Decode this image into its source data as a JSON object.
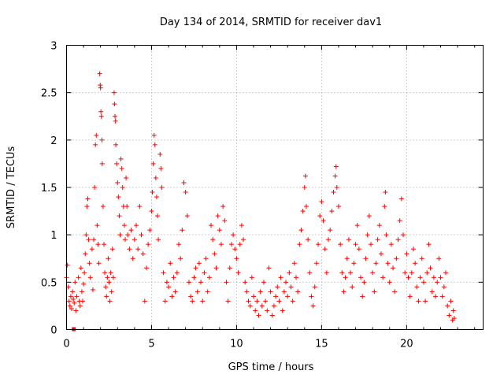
{
  "chart_data": {
    "type": "scatter",
    "title": "Day 134 of 2014, SRMTID for receiver dav1",
    "xlabel": "GPS time / hours",
    "ylabel": "SRMTID / TECUs",
    "xlim": [
      0,
      24.5
    ],
    "ylim": [
      0,
      3
    ],
    "x_ticks": [
      0,
      5,
      10,
      15,
      20
    ],
    "x_tick_labels": [
      "0",
      "5",
      "10",
      "15",
      "20"
    ],
    "y_ticks": [
      0,
      0.5,
      1,
      1.5,
      2,
      2.5,
      3
    ],
    "y_tick_labels": [
      "0",
      "0.5",
      "1",
      "1.5",
      "2",
      "2.5",
      "3"
    ],
    "grid": true,
    "marker": "plus",
    "color": "#ff0000",
    "series": [
      {
        "name": "dav1",
        "data_description": "Dense scatter of several thousand samples; the listed points are approximate readings of representative values from the figure.",
        "points": [
          [
            0.0,
            0.55
          ],
          [
            0.05,
            0.68
          ],
          [
            0.1,
            0.45
          ],
          [
            0.15,
            0.3
          ],
          [
            0.2,
            0.25
          ],
          [
            0.25,
            0.35
          ],
          [
            0.3,
            0.22
          ],
          [
            0.35,
            0.4
          ],
          [
            0.4,
            0.32
          ],
          [
            0.45,
            0.28
          ],
          [
            0.5,
            0.5
          ],
          [
            0.55,
            0.2
          ],
          [
            0.6,
            0.35
          ],
          [
            0.7,
            0.55
          ],
          [
            0.75,
            0.3
          ],
          [
            0.8,
            0.25
          ],
          [
            0.85,
            0.65
          ],
          [
            0.9,
            0.4
          ],
          [
            0.95,
            0.3
          ],
          [
            1.0,
            0.48
          ],
          [
            1.05,
            0.6
          ],
          [
            1.1,
            0.8
          ],
          [
            1.15,
            1.0
          ],
          [
            1.2,
            1.3
          ],
          [
            1.25,
            1.38
          ],
          [
            1.3,
            0.95
          ],
          [
            1.35,
            0.7
          ],
          [
            1.4,
            0.55
          ],
          [
            1.5,
            0.85
          ],
          [
            1.55,
            0.42
          ],
          [
            1.6,
            0.95
          ],
          [
            1.65,
            1.5
          ],
          [
            1.7,
            1.95
          ],
          [
            1.75,
            2.05
          ],
          [
            1.8,
            1.1
          ],
          [
            1.85,
            0.9
          ],
          [
            1.9,
            0.7
          ],
          [
            1.95,
            2.7
          ],
          [
            1.98,
            2.58
          ],
          [
            2.0,
            2.55
          ],
          [
            2.02,
            2.3
          ],
          [
            2.05,
            2.25
          ],
          [
            2.08,
            2.0
          ],
          [
            2.1,
            1.75
          ],
          [
            2.15,
            1.3
          ],
          [
            2.2,
            0.9
          ],
          [
            2.25,
            0.6
          ],
          [
            2.3,
            0.45
          ],
          [
            2.35,
            0.35
          ],
          [
            2.4,
            0.55
          ],
          [
            2.45,
            0.75
          ],
          [
            2.5,
            0.5
          ],
          [
            2.55,
            0.3
          ],
          [
            2.6,
            0.6
          ],
          [
            2.65,
            0.4
          ],
          [
            2.7,
            0.85
          ],
          [
            2.75,
            0.55
          ],
          [
            2.8,
            2.5
          ],
          [
            2.82,
            2.38
          ],
          [
            2.85,
            2.25
          ],
          [
            2.88,
            2.2
          ],
          [
            2.9,
            1.95
          ],
          [
            2.95,
            1.75
          ],
          [
            3.0,
            1.55
          ],
          [
            3.05,
            1.4
          ],
          [
            3.1,
            1.2
          ],
          [
            3.15,
            1.0
          ],
          [
            3.2,
            1.8
          ],
          [
            3.25,
            1.7
          ],
          [
            3.3,
            1.5
          ],
          [
            3.35,
            1.3
          ],
          [
            3.4,
            1.1
          ],
          [
            3.45,
            0.95
          ],
          [
            3.5,
            1.6
          ],
          [
            3.55,
            1.3
          ],
          [
            3.6,
            1.0
          ],
          [
            3.7,
            0.85
          ],
          [
            3.8,
            1.05
          ],
          [
            3.9,
            0.75
          ],
          [
            4.0,
            0.95
          ],
          [
            4.1,
            1.1
          ],
          [
            4.2,
            0.85
          ],
          [
            4.3,
            1.3
          ],
          [
            4.4,
            1.0
          ],
          [
            4.5,
            0.8
          ],
          [
            4.6,
            0.3
          ],
          [
            4.7,
            0.65
          ],
          [
            4.8,
            0.9
          ],
          [
            4.9,
            1.05
          ],
          [
            5.0,
            1.25
          ],
          [
            5.05,
            1.45
          ],
          [
            5.1,
            1.75
          ],
          [
            5.15,
            2.05
          ],
          [
            5.2,
            1.95
          ],
          [
            5.25,
            1.6
          ],
          [
            5.3,
            1.4
          ],
          [
            5.35,
            1.2
          ],
          [
            5.4,
            0.95
          ],
          [
            5.5,
            1.85
          ],
          [
            5.55,
            1.7
          ],
          [
            5.6,
            1.5
          ],
          [
            5.7,
            0.6
          ],
          [
            5.8,
            0.3
          ],
          [
            5.9,
            0.5
          ],
          [
            6.0,
            0.45
          ],
          [
            6.1,
            0.7
          ],
          [
            6.2,
            0.35
          ],
          [
            6.3,
            0.55
          ],
          [
            6.4,
            0.4
          ],
          [
            6.5,
            0.6
          ],
          [
            6.6,
            0.9
          ],
          [
            6.7,
            0.75
          ],
          [
            6.8,
            1.05
          ],
          [
            6.9,
            1.55
          ],
          [
            7.0,
            1.45
          ],
          [
            7.1,
            1.2
          ],
          [
            7.2,
            0.5
          ],
          [
            7.3,
            0.35
          ],
          [
            7.4,
            0.3
          ],
          [
            7.5,
            0.55
          ],
          [
            7.6,
            0.65
          ],
          [
            7.7,
            0.4
          ],
          [
            7.8,
            0.7
          ],
          [
            7.9,
            0.5
          ],
          [
            8.0,
            0.3
          ],
          [
            8.1,
            0.6
          ],
          [
            8.2,
            0.75
          ],
          [
            8.3,
            0.4
          ],
          [
            8.4,
            0.55
          ],
          [
            8.5,
            1.1
          ],
          [
            8.6,
            0.95
          ],
          [
            8.7,
            0.8
          ],
          [
            8.8,
            0.65
          ],
          [
            8.9,
            1.2
          ],
          [
            9.0,
            1.05
          ],
          [
            9.1,
            0.9
          ],
          [
            9.2,
            1.3
          ],
          [
            9.3,
            1.15
          ],
          [
            9.4,
            0.5
          ],
          [
            9.5,
            0.3
          ],
          [
            9.6,
            0.65
          ],
          [
            9.7,
            0.9
          ],
          [
            9.8,
            1.0
          ],
          [
            9.9,
            0.85
          ],
          [
            10.0,
            0.75
          ],
          [
            10.1,
            0.6
          ],
          [
            10.2,
            0.9
          ],
          [
            10.3,
            1.1
          ],
          [
            10.4,
            0.95
          ],
          [
            10.5,
            0.5
          ],
          [
            10.6,
            0.4
          ],
          [
            10.7,
            0.3
          ],
          [
            10.8,
            0.25
          ],
          [
            10.9,
            0.55
          ],
          [
            11.0,
            0.35
          ],
          [
            11.1,
            0.2
          ],
          [
            11.2,
            0.3
          ],
          [
            11.3,
            0.15
          ],
          [
            11.4,
            0.4
          ],
          [
            11.5,
            0.25
          ],
          [
            11.6,
            0.5
          ],
          [
            11.7,
            0.3
          ],
          [
            11.8,
            0.2
          ],
          [
            11.9,
            0.65
          ],
          [
            12.0,
            0.4
          ],
          [
            12.1,
            0.15
          ],
          [
            12.2,
            0.25
          ],
          [
            12.3,
            0.35
          ],
          [
            12.4,
            0.45
          ],
          [
            12.5,
            0.3
          ],
          [
            12.6,
            0.55
          ],
          [
            12.7,
            0.2
          ],
          [
            12.8,
            0.4
          ],
          [
            12.9,
            0.5
          ],
          [
            13.0,
            0.35
          ],
          [
            13.1,
            0.6
          ],
          [
            13.2,
            0.45
          ],
          [
            13.3,
            0.3
          ],
          [
            13.4,
            0.7
          ],
          [
            13.5,
            0.55
          ],
          [
            13.6,
            0.4
          ],
          [
            13.7,
            0.9
          ],
          [
            13.8,
            1.05
          ],
          [
            13.9,
            1.25
          ],
          [
            14.0,
            1.5
          ],
          [
            14.05,
            1.62
          ],
          [
            14.1,
            1.3
          ],
          [
            14.2,
            0.95
          ],
          [
            14.3,
            0.6
          ],
          [
            14.4,
            0.35
          ],
          [
            14.5,
            0.25
          ],
          [
            14.6,
            0.45
          ],
          [
            14.7,
            0.7
          ],
          [
            14.8,
            0.9
          ],
          [
            14.9,
            1.2
          ],
          [
            15.0,
            1.35
          ],
          [
            15.1,
            1.15
          ],
          [
            15.2,
            0.85
          ],
          [
            15.3,
            0.6
          ],
          [
            15.4,
            0.95
          ],
          [
            15.5,
            1.05
          ],
          [
            15.6,
            1.25
          ],
          [
            15.7,
            1.45
          ],
          [
            15.8,
            1.62
          ],
          [
            15.85,
            1.72
          ],
          [
            15.9,
            1.5
          ],
          [
            16.0,
            1.3
          ],
          [
            16.1,
            0.9
          ],
          [
            16.2,
            0.6
          ],
          [
            16.3,
            0.4
          ],
          [
            16.4,
            0.55
          ],
          [
            16.5,
            0.75
          ],
          [
            16.6,
            0.95
          ],
          [
            16.7,
            0.6
          ],
          [
            16.8,
            0.45
          ],
          [
            16.9,
            0.7
          ],
          [
            17.0,
            0.9
          ],
          [
            17.1,
            1.1
          ],
          [
            17.2,
            0.85
          ],
          [
            17.3,
            0.55
          ],
          [
            17.4,
            0.35
          ],
          [
            17.5,
            0.5
          ],
          [
            17.6,
            0.75
          ],
          [
            17.7,
            1.0
          ],
          [
            17.8,
            1.2
          ],
          [
            17.9,
            0.9
          ],
          [
            18.0,
            0.6
          ],
          [
            18.1,
            0.4
          ],
          [
            18.2,
            0.7
          ],
          [
            18.3,
            0.95
          ],
          [
            18.4,
            1.1
          ],
          [
            18.5,
            0.8
          ],
          [
            18.6,
            0.55
          ],
          [
            18.7,
            1.3
          ],
          [
            18.75,
            1.45
          ],
          [
            18.8,
            1.0
          ],
          [
            18.9,
            0.7
          ],
          [
            19.0,
            0.5
          ],
          [
            19.1,
            0.9
          ],
          [
            19.2,
            0.65
          ],
          [
            19.3,
            0.4
          ],
          [
            19.4,
            0.75
          ],
          [
            19.5,
            0.95
          ],
          [
            19.6,
            1.15
          ],
          [
            19.7,
            1.38
          ],
          [
            19.8,
            1.0
          ],
          [
            19.9,
            0.6
          ],
          [
            20.0,
            0.8
          ],
          [
            20.1,
            0.55
          ],
          [
            20.2,
            0.35
          ],
          [
            20.3,
            0.6
          ],
          [
            20.4,
            0.85
          ],
          [
            20.5,
            0.7
          ],
          [
            20.6,
            0.45
          ],
          [
            20.7,
            0.3
          ],
          [
            20.8,
            0.55
          ],
          [
            20.9,
            0.75
          ],
          [
            21.0,
            0.5
          ],
          [
            21.1,
            0.3
          ],
          [
            21.2,
            0.6
          ],
          [
            21.3,
            0.9
          ],
          [
            21.4,
            0.65
          ],
          [
            21.5,
            0.4
          ],
          [
            21.6,
            0.55
          ],
          [
            21.7,
            0.35
          ],
          [
            21.8,
            0.5
          ],
          [
            21.9,
            0.75
          ],
          [
            22.0,
            0.55
          ],
          [
            22.1,
            0.35
          ],
          [
            22.2,
            0.45
          ],
          [
            22.3,
            0.6
          ],
          [
            22.4,
            0.25
          ],
          [
            22.5,
            0.15
          ],
          [
            22.6,
            0.3
          ],
          [
            22.7,
            0.1
          ],
          [
            22.75,
            0.2
          ],
          [
            22.8,
            0.12
          ]
        ]
      }
    ],
    "annotations": [
      {
        "kind": "square-marker",
        "x": 0.45,
        "y": 0.0,
        "color": "#ff0000"
      }
    ]
  }
}
